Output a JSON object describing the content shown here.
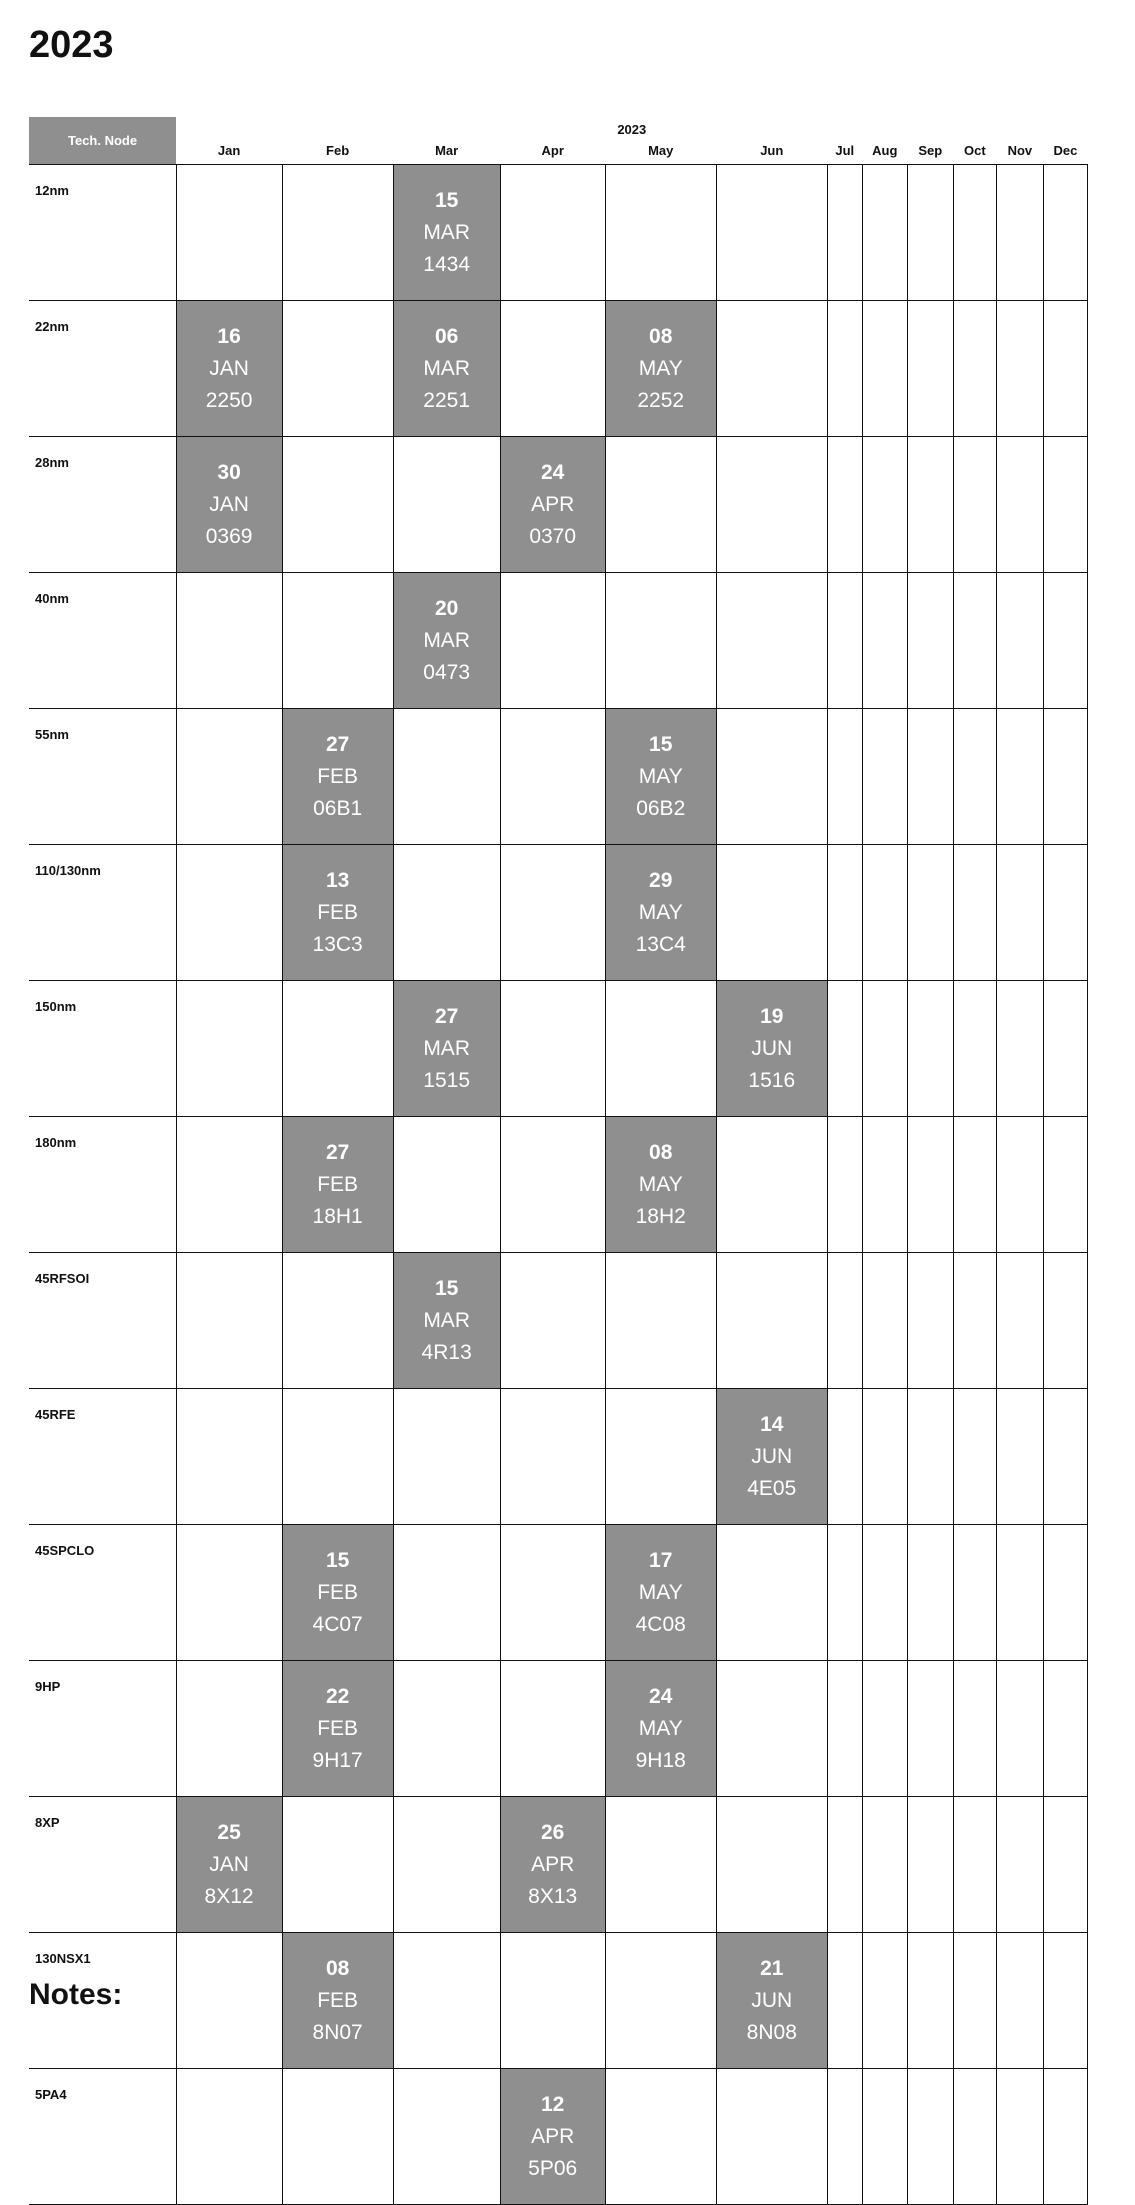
{
  "title": "2023",
  "notes_label": "Notes:",
  "header": {
    "node_label": "Tech. Node",
    "year": "2023",
    "months": [
      "Jan",
      "Feb",
      "Mar",
      "Apr",
      "May",
      "Jun",
      "Jul",
      "Aug",
      "Sep",
      "Oct",
      "Nov",
      "Dec"
    ]
  },
  "fill_color": "#8f8f8f",
  "rows": [
    {
      "node": "12nm",
      "events": [
        {
          "month": 2,
          "day": "15",
          "mon": "MAR",
          "code": "1434"
        }
      ]
    },
    {
      "node": "22nm",
      "events": [
        {
          "month": 0,
          "day": "16",
          "mon": "JAN",
          "code": "2250"
        },
        {
          "month": 2,
          "day": "06",
          "mon": "MAR",
          "code": "2251"
        },
        {
          "month": 4,
          "day": "08",
          "mon": "MAY",
          "code": "2252"
        }
      ]
    },
    {
      "node": "28nm",
      "events": [
        {
          "month": 0,
          "day": "30",
          "mon": "JAN",
          "code": "0369"
        },
        {
          "month": 3,
          "day": "24",
          "mon": "APR",
          "code": "0370"
        }
      ]
    },
    {
      "node": "40nm",
      "events": [
        {
          "month": 2,
          "day": "20",
          "mon": "MAR",
          "code": "0473"
        }
      ]
    },
    {
      "node": "55nm",
      "events": [
        {
          "month": 1,
          "day": "27",
          "mon": "FEB",
          "code": "06B1"
        },
        {
          "month": 4,
          "day": "15",
          "mon": "MAY",
          "code": "06B2"
        }
      ]
    },
    {
      "node": "110/130nm",
      "events": [
        {
          "month": 1,
          "day": "13",
          "mon": "FEB",
          "code": "13C3"
        },
        {
          "month": 4,
          "day": "29",
          "mon": "MAY",
          "code": "13C4"
        }
      ]
    },
    {
      "node": "150nm",
      "events": [
        {
          "month": 2,
          "day": "27",
          "mon": "MAR",
          "code": "1515"
        },
        {
          "month": 5,
          "day": "19",
          "mon": "JUN",
          "code": "1516"
        }
      ]
    },
    {
      "node": "180nm",
      "events": [
        {
          "month": 1,
          "day": "27",
          "mon": "FEB",
          "code": "18H1"
        },
        {
          "month": 4,
          "day": "08",
          "mon": "MAY",
          "code": "18H2"
        }
      ]
    },
    {
      "node": "45RFSOI",
      "events": [
        {
          "month": 2,
          "day": "15",
          "mon": "MAR",
          "code": "4R13"
        }
      ]
    },
    {
      "node": "45RFE",
      "events": [
        {
          "month": 5,
          "day": "14",
          "mon": "JUN",
          "code": "4E05"
        }
      ]
    },
    {
      "node": "45SPCLO",
      "events": [
        {
          "month": 1,
          "day": "15",
          "mon": "FEB",
          "code": "4C07"
        },
        {
          "month": 4,
          "day": "17",
          "mon": "MAY",
          "code": "4C08"
        }
      ]
    },
    {
      "node": "9HP",
      "events": [
        {
          "month": 1,
          "day": "22",
          "mon": "FEB",
          "code": "9H17"
        },
        {
          "month": 4,
          "day": "24",
          "mon": "MAY",
          "code": "9H18"
        }
      ]
    },
    {
      "node": "8XP",
      "events": [
        {
          "month": 0,
          "day": "25",
          "mon": "JAN",
          "code": "8X12"
        },
        {
          "month": 3,
          "day": "26",
          "mon": "APR",
          "code": "8X13"
        }
      ]
    },
    {
      "node": "130NSX1",
      "events": [
        {
          "month": 1,
          "day": "08",
          "mon": "FEB",
          "code": "8N07"
        },
        {
          "month": 5,
          "day": "21",
          "mon": "JUN",
          "code": "8N08"
        }
      ]
    },
    {
      "node": "5PA4",
      "events": [
        {
          "month": 3,
          "day": "12",
          "mon": "APR",
          "code": "5P06"
        }
      ]
    }
  ]
}
